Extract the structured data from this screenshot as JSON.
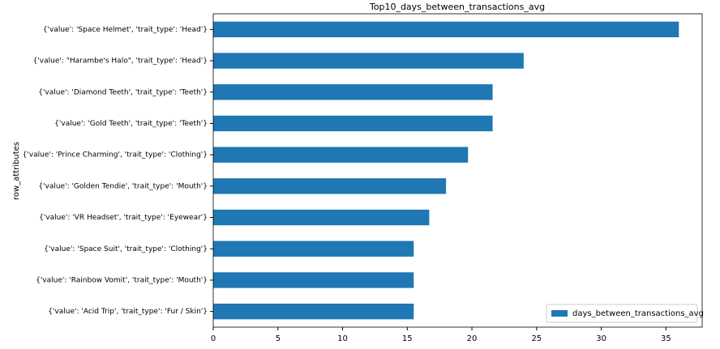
{
  "chart_data": {
    "type": "barh",
    "title": "Top10_days_between_transactions_avg",
    "y_label": "row_attributes",
    "categories": [
      "{'value': 'Space Helmet', 'trait_type': 'Head'}",
      "{'value': \"Harambe's Halo\", 'trait_type': 'Head'}",
      "{'value': 'Diamond Teeth', 'trait_type': 'Teeth'}",
      "{'value': 'Gold Teeth', 'trait_type': 'Teeth'}",
      "{'value': 'Prince Charming', 'trait_type': 'Clothing'}",
      "{'value': 'Golden Tendie', 'trait_type': 'Mouth'}",
      "{'value': 'VR Headset', 'trait_type': 'Eyewear'}",
      "{'value': 'Space Suit', 'trait_type': 'Clothing'}",
      "{'value': 'Rainbow Vomit', 'trait_type': 'Mouth'}",
      "{'value': 'Acid Trip', 'trait_type': 'Fur / Skin'}"
    ],
    "series": [
      {
        "name": "days_between_transactions_avg",
        "color": "#1f77b4",
        "values": [
          36.0,
          24.0,
          21.6,
          21.6,
          19.7,
          18.0,
          16.7,
          15.5,
          15.5,
          15.5
        ]
      }
    ],
    "xlim": [
      0,
      37.8
    ],
    "xticks": [
      0,
      5,
      10,
      15,
      20,
      25,
      30,
      35
    ],
    "legend": "lower right"
  }
}
